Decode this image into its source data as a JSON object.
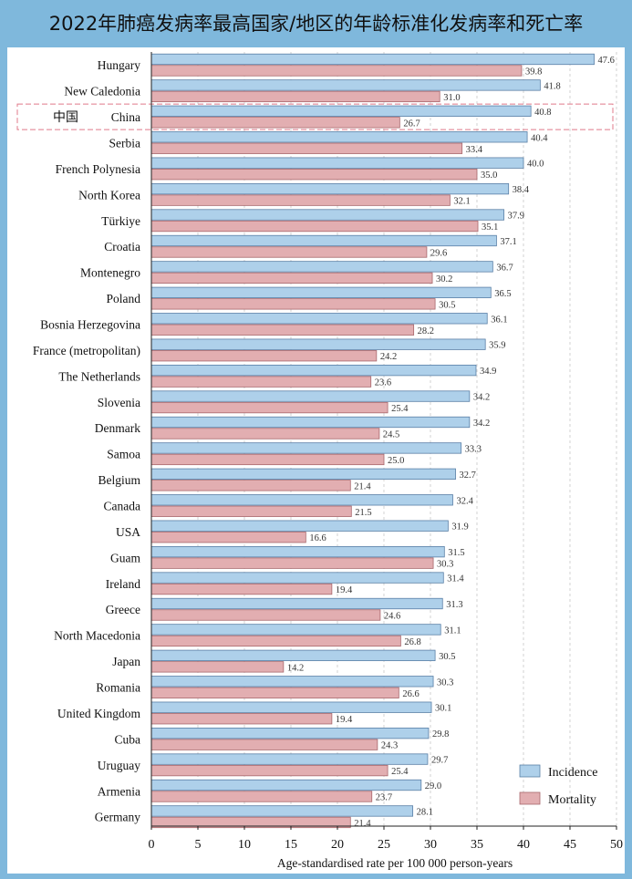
{
  "title": "2022年肺癌发病率最高国家/地区的年龄标准化发病率和死亡率",
  "colors": {
    "incidence": "#aed0ea",
    "incidence_stroke": "#5a7fa6",
    "mortality": "#e2aeb1",
    "mortality_stroke": "#a8676c",
    "highlight_box": "#e07a8a",
    "background": "#7fb8dc"
  },
  "highlight": {
    "country": "China",
    "label_prefix": "中国"
  },
  "chart_data": {
    "type": "bar",
    "orientation": "horizontal",
    "title": "2022年肺癌发病率最高国家/地区的年龄标准化发病率和死亡率",
    "xlabel": "Age-standardised rate per 100 000 person-years",
    "ylabel": "",
    "xlim": [
      0,
      50
    ],
    "xticks": [
      0,
      5,
      10,
      15,
      20,
      25,
      30,
      35,
      40,
      45,
      50
    ],
    "grid": "vertical dashed",
    "legend_position": "bottom-right",
    "categories": [
      "Hungary",
      "New Caledonia",
      "China",
      "Serbia",
      "French Polynesia",
      "North Korea",
      "Türkiye",
      "Croatia",
      "Montenegro",
      "Poland",
      "Bosnia Herzegovina",
      "France (metropolitan)",
      "The Netherlands",
      "Slovenia",
      "Denmark",
      "Samoa",
      "Belgium",
      "Canada",
      "USA",
      "Guam",
      "Ireland",
      "Greece",
      "North Macedonia",
      "Japan",
      "Romania",
      "United Kingdom",
      "Cuba",
      "Uruguay",
      "Armenia",
      "Germany"
    ],
    "series": [
      {
        "name": "Incidence",
        "values": [
          47.6,
          41.8,
          40.8,
          40.4,
          40.0,
          38.4,
          37.9,
          37.1,
          36.7,
          36.5,
          36.1,
          35.9,
          34.9,
          34.2,
          34.2,
          33.3,
          32.7,
          32.4,
          31.9,
          31.5,
          31.4,
          31.3,
          31.1,
          30.5,
          30.3,
          30.1,
          29.8,
          29.7,
          29.0,
          28.1
        ],
        "labels": [
          "47.6",
          "41.8",
          "40.8",
          "40.4",
          "40.0",
          "38.4",
          "37.9",
          "37.1",
          "36.7",
          "36.5",
          "36.1",
          "35.9",
          "34.9",
          "34.2",
          "34.2",
          "33.3",
          "32.7",
          "32.4",
          "31.9",
          "31.5",
          "31.4",
          "31.3",
          "31.1",
          "30.5",
          "30.3",
          "30.1",
          "29.8",
          "29.7",
          "29.0",
          "28.1"
        ]
      },
      {
        "name": "Mortality",
        "values": [
          39.8,
          31.0,
          26.7,
          33.4,
          35.0,
          32.1,
          35.1,
          29.6,
          30.2,
          30.5,
          28.2,
          24.2,
          23.6,
          25.4,
          24.5,
          25.0,
          21.4,
          21.5,
          16.6,
          30.3,
          19.4,
          24.6,
          26.8,
          14.2,
          26.6,
          19.4,
          24.3,
          25.4,
          23.7,
          21.4
        ],
        "labels": [
          "39.8",
          "31.0",
          "26.7",
          "33.4",
          "35.0",
          "32.1",
          "35.1",
          "29.6",
          "30.2",
          "30.5",
          "28.2",
          "24.2",
          "23.6",
          "25.4",
          "24.5",
          "25.0",
          "21.4",
          "21.5",
          "16.6",
          "30.3",
          "19.4",
          "24.6",
          "26.8",
          "14.2",
          "26.6",
          "19.4",
          "24.3",
          "25.4",
          "23.7",
          "21.4"
        ]
      }
    ]
  }
}
